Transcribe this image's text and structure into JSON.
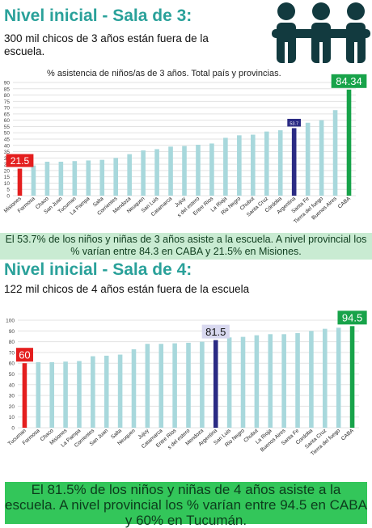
{
  "section1": {
    "title": "Nivel inicial - Sala de 3:",
    "subtitle": "300 mil chicos de 3 años están fuera de la escuela.",
    "note": "El 53.7% de los niños y niñas de 3 años asiste a la escuela. A nivel provincial los % varían entre 84.3 en CABA y 21.5% en Misiones."
  },
  "section2": {
    "title": "Nivel inicial - Sala de 4:",
    "subtitle": "122 mil chicos de 4 años están fuera de la escuela",
    "note": "El 81.5% de los niños y niñas de 4 años asiste a la escuela. A nivel provincial los % varían entre 94.5 en CABA y 60% en Tucumán."
  },
  "colors": {
    "bar": "#a8d8dc",
    "min": "#e41e1e",
    "avg": "#2b2b84",
    "max": "#18a34a",
    "title": "#2aa19a",
    "note_bg": "#c9ebd2",
    "note2_bg": "#33c65a",
    "icon": "#123a3f"
  },
  "icon": "family-people-icon",
  "chart_data": [
    {
      "type": "bar",
      "title": "% asistencia de niños/as de 3 años. Total país y provincias.",
      "categories": [
        "Misiones",
        "Formosa",
        "Chaco",
        "San Juan",
        "Tucuman",
        "La Pampa",
        "Salta",
        "Corrientes",
        "Mendoza",
        "Neuquen",
        "San Luis",
        "Catamarca",
        "Jujuy",
        "s del estero",
        "Entre Rios",
        "La Rioja",
        "Rio Negro",
        "Chubut",
        "Santa Cruz",
        "Córdoba",
        "Argentina",
        "Santa Fe",
        "Tierra del fuego",
        "Buenos Aires",
        "CABA"
      ],
      "values": [
        21.5,
        24,
        27,
        27,
        27.5,
        28,
        28.5,
        30,
        33,
        36,
        37,
        39,
        39.5,
        40.5,
        41.5,
        46,
        48,
        48.5,
        51,
        52,
        53.7,
        58,
        60,
        68,
        84.34
      ],
      "highlight_labels": {
        "min": "21.5",
        "avg": "53.7",
        "max": "84.34"
      },
      "ylim": [
        0,
        90
      ],
      "yticks": [
        0,
        5,
        10,
        15,
        20,
        25,
        30,
        35,
        40,
        45,
        50,
        55,
        60,
        65,
        70,
        75,
        80,
        85,
        90
      ],
      "ytick_labels": [
        "0",
        "5",
        "10",
        "15",
        "20",
        "25",
        "30",
        "35",
        "40",
        "45",
        "50",
        "55",
        "60",
        "65",
        "70",
        "75",
        "80",
        "85",
        "90"
      ],
      "grid": true
    },
    {
      "type": "bar",
      "categories": [
        "Tucuman",
        "Formosa",
        "Chaco",
        "Misiones",
        "La Pampa",
        "Corrientes",
        "San Juan",
        "Salta",
        "Neuquen",
        "Jujuy",
        "Catamarca",
        "Entre Rios",
        "s del estero",
        "Mendoza",
        "Argentina",
        "San Luis",
        "Rio Negro",
        "Chubut",
        "La Rioja",
        "Buenos Aires",
        "Santa Fe",
        "Cordoba",
        "Santa Cruz",
        "Tierra del fuego",
        "CABA"
      ],
      "values": [
        60,
        61,
        61,
        61.5,
        62,
        66.5,
        67,
        68,
        73,
        78,
        78,
        78.5,
        79,
        80,
        81.5,
        84,
        84.5,
        86,
        87,
        87,
        88,
        90,
        92,
        93,
        94.5
      ],
      "highlight_labels": {
        "min": "60",
        "avg": "81.5",
        "max": "94.5"
      },
      "ylim": [
        0,
        100
      ],
      "yticks": [
        0,
        10,
        20,
        30,
        40,
        50,
        60,
        70,
        80,
        90,
        100
      ],
      "ytick_labels": [
        "0",
        "10",
        "20",
        "30",
        "40",
        "50",
        "60",
        "70",
        "80",
        "90",
        "100"
      ],
      "grid": true
    }
  ]
}
